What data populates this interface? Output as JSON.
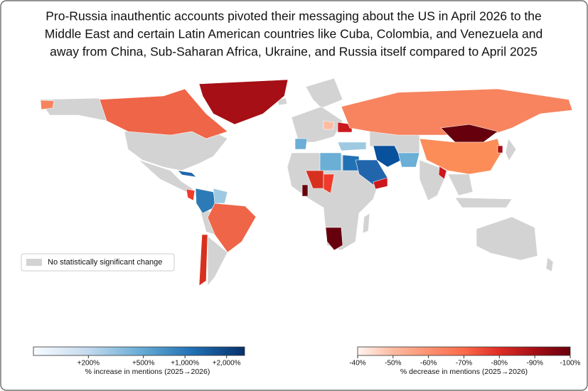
{
  "title": [
    "Pro-Russia inauthentic accounts pivoted their messaging about the US in April 2026 to the",
    "Middle East and certain Latin American countries like Cuba, Colombia, and Venezuela and",
    "away from China, Sub-Saharan Africa, Ukraine, and Russia itself compared to April 2025"
  ],
  "legend": {
    "label": "No statistically significant change",
    "color": "#d3d3d3"
  },
  "colorbars": [
    {
      "label": "% increase in mentions (2025→2026)",
      "scale": "log",
      "lim": [
        80,
        2700
      ],
      "colors": [
        "#f7fbff",
        "#c6dbef",
        "#6baed6",
        "#2171b5",
        "#08306b"
      ],
      "ticks": [
        {
          "value": 200,
          "label": "+200%"
        },
        {
          "value": 500,
          "label": "+500%"
        },
        {
          "value": 1000,
          "label": "+1,000%"
        },
        {
          "value": 2000,
          "label": "+2,000%"
        }
      ]
    },
    {
      "label": "% decrease in mentions (2025→2026)",
      "scale": "linear",
      "lim": [
        -40,
        -100
      ],
      "colors": [
        "#fff5f0",
        "#fcbba1",
        "#fc9272",
        "#fb6a4a",
        "#de2d26",
        "#a50f15",
        "#67000d"
      ],
      "ticks": [
        {
          "value": -40,
          "label": "-40%"
        },
        {
          "value": -50,
          "label": "-50%"
        },
        {
          "value": -60,
          "label": "-60%"
        },
        {
          "value": -70,
          "label": "-70%"
        },
        {
          "value": -80,
          "label": "-80%"
        },
        {
          "value": -90,
          "label": "-90%"
        },
        {
          "value": -100,
          "label": "-100%"
        }
      ]
    }
  ]
}
